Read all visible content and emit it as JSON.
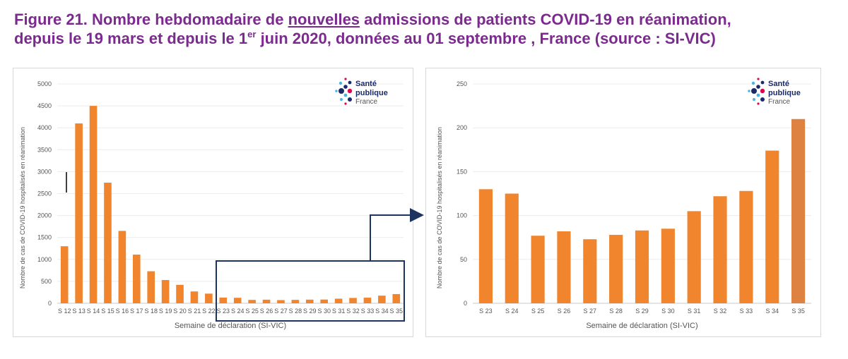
{
  "figure": {
    "part1": "Figure 21. Nombre hebdomadaire de",
    "underlined": "nouvelles",
    "part2": "admissions de patients COVID-19 en réanimation,",
    "line2a": "depuis le 19 mars et depuis le 1",
    "sup": "er",
    "line2b": "juin 2020, données au 01 septembre , France (source : SI-VIC)"
  },
  "logo": {
    "line1": "Santé",
    "line2": "publique",
    "line3": "France"
  },
  "colors": {
    "bar": "#f0852e",
    "bar_last": "#dd8240",
    "zoom_box": "#1d3461",
    "title": "#7b2a8e"
  },
  "chart_data": [
    {
      "type": "bar",
      "title": "",
      "xlabel": "Semaine de déclaration (SI-VIC)",
      "ylabel": "Nombre de cas de COVID-19 hospitalisés en réanimation",
      "ylim": [
        0,
        5000
      ],
      "yticks": [
        0,
        500,
        1000,
        1500,
        2000,
        2500,
        3000,
        3500,
        4000,
        4500,
        5000
      ],
      "grid": true,
      "categories": [
        "S 12",
        "S 13",
        "S 14",
        "S 15",
        "S 16",
        "S 17",
        "S 18",
        "S 19",
        "S 20",
        "S 21",
        "S 22",
        "S 23",
        "S 24",
        "S 25",
        "S 26",
        "S 27",
        "S 28",
        "S 29",
        "S 30",
        "S 31",
        "S 32",
        "S 33",
        "S 34",
        "S 35"
      ],
      "values": [
        1300,
        4100,
        4500,
        2750,
        1650,
        1110,
        730,
        530,
        420,
        270,
        220,
        130,
        125,
        77,
        82,
        73,
        78,
        83,
        85,
        105,
        122,
        128,
        174,
        210
      ]
    },
    {
      "type": "bar",
      "title": "",
      "xlabel": "Semaine de déclaration (SI-VIC)",
      "ylabel": "Nombre de cas de COVID-19 hospitalisés en réanimation",
      "ylim": [
        0,
        250
      ],
      "yticks": [
        0,
        50,
        100,
        150,
        200,
        250
      ],
      "grid": true,
      "categories": [
        "S 23",
        "S 24",
        "S 25",
        "S 26",
        "S 27",
        "S 28",
        "S 29",
        "S 30",
        "S 31",
        "S 32",
        "S 33",
        "S 34",
        "S 35"
      ],
      "values": [
        130,
        125,
        77,
        82,
        73,
        78,
        83,
        85,
        105,
        122,
        128,
        174,
        210
      ]
    }
  ]
}
